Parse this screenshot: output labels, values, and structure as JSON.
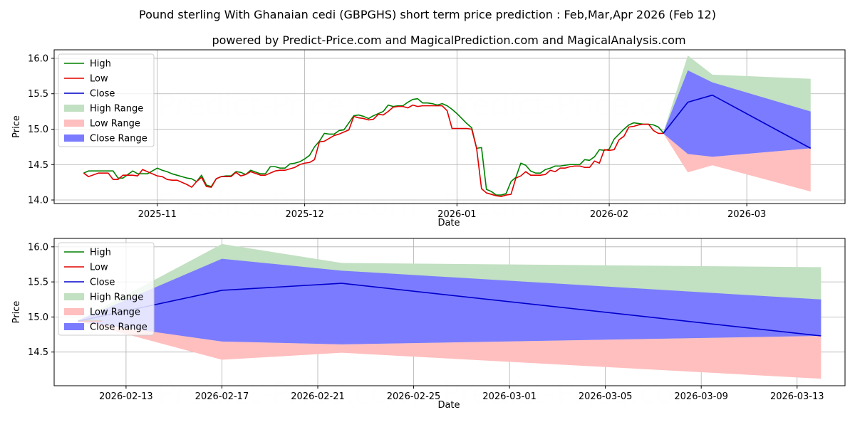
{
  "title": "Pound sterling With Ghanaian cedi (GBPGHS) short term price prediction : Feb,Mar,Apr 2026 (Feb 12)",
  "subtitle": "powered by Predict-Price.com and MagicalPrediction.com and MagicalAnalysis.com",
  "watermark": "Predict-Price.com",
  "colors": {
    "high": "#008000",
    "low": "#e00000",
    "close": "#0000cc",
    "high_range": "#c2e0c2",
    "low_range": "#ffbfbf",
    "close_range": "#7b7bff"
  },
  "chart_data": [
    {
      "type": "line",
      "name": "history",
      "xlabel": "Date",
      "ylabel": "Price",
      "xlim": [
        "2025-10-11",
        "2026-03-21"
      ],
      "ylim": [
        13.95,
        16.12
      ],
      "yticks": [
        14.0,
        14.5,
        15.0,
        15.5,
        16.0
      ],
      "ytick_labels": [
        "14.0",
        "14.5",
        "15.0",
        "15.5",
        "16.0"
      ],
      "xticks": [
        "2025-11-01",
        "2025-12-01",
        "2026-01-01",
        "2026-02-01",
        "2026-03-01"
      ],
      "xtick_labels": [
        "2025-11",
        "2025-12",
        "2026-01",
        "2026-02",
        "2026-03"
      ],
      "grid": true,
      "legend": {
        "placement": "top-left",
        "entries": [
          "High",
          "Low",
          "Close",
          "High Range",
          "Low Range",
          "Close Range"
        ]
      },
      "series": [
        {
          "name": "High",
          "x": [
            "2025-10-17",
            "2025-10-18",
            "2025-10-20",
            "2025-10-22",
            "2025-10-23",
            "2025-10-24",
            "2025-10-25",
            "2025-10-27",
            "2025-10-28",
            "2025-10-29",
            "2025-10-30",
            "2025-11-01",
            "2025-11-02",
            "2025-11-03",
            "2025-11-04",
            "2025-11-05",
            "2025-11-07",
            "2025-11-08",
            "2025-11-09",
            "2025-11-10",
            "2025-11-11",
            "2025-11-12",
            "2025-11-13",
            "2025-11-14",
            "2025-11-15",
            "2025-11-16",
            "2025-11-17",
            "2025-11-18",
            "2025-11-19",
            "2025-11-20",
            "2025-11-22",
            "2025-11-23",
            "2025-11-24",
            "2025-11-25",
            "2025-11-26",
            "2025-11-27",
            "2025-11-28",
            "2025-11-29",
            "2025-11-30",
            "2025-12-01",
            "2025-12-02",
            "2025-12-03",
            "2025-12-04",
            "2025-12-05",
            "2025-12-06",
            "2025-12-07",
            "2025-12-08",
            "2025-12-09",
            "2025-12-10",
            "2025-12-11",
            "2025-12-12",
            "2025-12-13",
            "2025-12-14",
            "2025-12-15",
            "2025-12-16",
            "2025-12-17",
            "2025-12-18",
            "2025-12-19",
            "2025-12-20",
            "2025-12-21",
            "2025-12-22",
            "2025-12-23",
            "2025-12-24",
            "2025-12-25",
            "2025-12-26",
            "2025-12-27",
            "2025-12-28",
            "2025-12-29",
            "2025-12-30",
            "2025-12-31",
            "2026-01-01",
            "2026-01-02",
            "2026-01-03",
            "2026-01-04",
            "2026-01-05",
            "2026-01-06",
            "2026-01-07",
            "2026-01-08",
            "2026-01-09",
            "2026-01-10",
            "2026-01-11",
            "2026-01-12",
            "2026-01-13",
            "2026-01-14",
            "2026-01-15",
            "2026-01-16",
            "2026-01-17",
            "2026-01-18",
            "2026-01-19",
            "2026-01-20",
            "2026-01-21",
            "2026-01-22",
            "2026-01-23",
            "2026-01-24",
            "2026-01-25",
            "2026-01-26",
            "2026-01-27",
            "2026-01-28",
            "2026-01-29",
            "2026-01-30",
            "2026-01-31",
            "2026-02-01",
            "2026-02-02",
            "2026-02-03",
            "2026-02-04",
            "2026-02-05",
            "2026-02-06",
            "2026-02-07",
            "2026-02-08",
            "2026-02-09",
            "2026-02-10",
            "2026-02-11",
            "2026-02-12"
          ],
          "values": [
            14.38,
            14.41,
            14.41,
            14.41,
            14.41,
            14.31,
            14.31,
            14.41,
            14.37,
            14.37,
            14.37,
            14.45,
            14.42,
            14.4,
            14.37,
            14.35,
            14.31,
            14.3,
            14.26,
            14.35,
            14.21,
            14.19,
            14.3,
            14.33,
            14.34,
            14.34,
            14.4,
            14.39,
            14.36,
            14.42,
            14.37,
            14.37,
            14.47,
            14.47,
            14.45,
            14.45,
            14.51,
            14.52,
            14.54,
            14.58,
            14.63,
            14.75,
            14.83,
            14.94,
            14.93,
            14.93,
            14.98,
            14.99,
            15.09,
            15.19,
            15.2,
            15.18,
            15.15,
            15.19,
            15.22,
            15.25,
            15.34,
            15.32,
            15.33,
            15.33,
            15.38,
            15.42,
            15.43,
            15.37,
            15.37,
            15.36,
            15.34,
            15.36,
            15.33,
            15.28,
            15.22,
            15.15,
            15.08,
            15.02,
            14.73,
            14.74,
            14.15,
            14.12,
            14.07,
            14.07,
            14.09,
            14.26,
            14.32,
            14.52,
            14.49,
            14.41,
            14.38,
            14.38,
            14.43,
            14.45,
            14.48,
            14.48,
            14.49,
            14.5,
            14.5,
            14.5,
            14.57,
            14.56,
            14.61,
            14.71,
            14.7,
            14.72,
            14.86,
            14.93,
            15.0,
            15.06,
            15.09,
            15.08,
            15.07,
            15.07,
            15.06,
            15.03,
            14.95
          ]
        },
        {
          "name": "Low",
          "x": [
            "2025-10-17",
            "2025-10-18",
            "2025-10-20",
            "2025-10-22",
            "2025-10-23",
            "2025-10-24",
            "2025-10-25",
            "2025-10-27",
            "2025-10-28",
            "2025-10-29",
            "2025-10-30",
            "2025-11-01",
            "2025-11-02",
            "2025-11-03",
            "2025-11-04",
            "2025-11-05",
            "2025-11-07",
            "2025-11-08",
            "2025-11-09",
            "2025-11-10",
            "2025-11-11",
            "2025-11-12",
            "2025-11-13",
            "2025-11-14",
            "2025-11-15",
            "2025-11-16",
            "2025-11-17",
            "2025-11-18",
            "2025-11-19",
            "2025-11-20",
            "2025-11-22",
            "2025-11-23",
            "2025-11-24",
            "2025-11-25",
            "2025-11-26",
            "2025-11-27",
            "2025-11-28",
            "2025-11-29",
            "2025-11-30",
            "2025-12-01",
            "2025-12-02",
            "2025-12-03",
            "2025-12-04",
            "2025-12-05",
            "2025-12-06",
            "2025-12-07",
            "2025-12-08",
            "2025-12-09",
            "2025-12-10",
            "2025-12-11",
            "2025-12-12",
            "2025-12-13",
            "2025-12-14",
            "2025-12-15",
            "2025-12-16",
            "2025-12-17",
            "2025-12-18",
            "2025-12-19",
            "2025-12-20",
            "2025-12-21",
            "2025-12-22",
            "2025-12-23",
            "2025-12-24",
            "2025-12-25",
            "2025-12-26",
            "2025-12-27",
            "2025-12-28",
            "2025-12-29",
            "2025-12-30",
            "2025-12-31",
            "2026-01-01",
            "2026-01-02",
            "2026-01-03",
            "2026-01-04",
            "2026-01-05",
            "2026-01-06",
            "2026-01-07",
            "2026-01-08",
            "2026-01-09",
            "2026-01-10",
            "2026-01-11",
            "2026-01-12",
            "2026-01-13",
            "2026-01-14",
            "2026-01-15",
            "2026-01-16",
            "2026-01-17",
            "2026-01-18",
            "2026-01-19",
            "2026-01-20",
            "2026-01-21",
            "2026-01-22",
            "2026-01-23",
            "2026-01-24",
            "2026-01-25",
            "2026-01-26",
            "2026-01-27",
            "2026-01-28",
            "2026-01-29",
            "2026-01-30",
            "2026-01-31",
            "2026-02-01",
            "2026-02-02",
            "2026-02-03",
            "2026-02-04",
            "2026-02-05",
            "2026-02-06",
            "2026-02-07",
            "2026-02-08",
            "2026-02-09",
            "2026-02-10",
            "2026-02-11",
            "2026-02-12"
          ],
          "values": [
            14.38,
            14.33,
            14.38,
            14.38,
            14.29,
            14.29,
            14.35,
            14.35,
            14.34,
            14.43,
            14.4,
            14.34,
            14.33,
            14.29,
            14.28,
            14.28,
            14.22,
            14.18,
            14.26,
            14.32,
            14.19,
            14.18,
            14.3,
            14.33,
            14.33,
            14.33,
            14.39,
            14.34,
            14.36,
            14.4,
            14.35,
            14.35,
            14.38,
            14.41,
            14.42,
            14.42,
            14.44,
            14.46,
            14.5,
            14.52,
            14.53,
            14.57,
            14.82,
            14.83,
            14.87,
            14.91,
            14.93,
            14.96,
            14.99,
            15.18,
            15.16,
            15.15,
            15.13,
            15.14,
            15.21,
            15.2,
            15.25,
            15.31,
            15.32,
            15.32,
            15.3,
            15.34,
            15.32,
            15.33,
            15.33,
            15.33,
            15.33,
            15.33,
            15.26,
            15.01,
            15.01,
            15.01,
            15.01,
            15.0,
            14.73,
            14.16,
            14.1,
            14.08,
            14.06,
            14.05,
            14.07,
            14.08,
            14.31,
            14.34,
            14.4,
            14.35,
            14.35,
            14.35,
            14.36,
            14.42,
            14.4,
            14.45,
            14.45,
            14.47,
            14.48,
            14.48,
            14.46,
            14.46,
            14.55,
            14.52,
            14.71,
            14.7,
            14.71,
            14.85,
            14.9,
            15.03,
            15.04,
            15.06,
            15.07,
            15.07,
            14.98,
            14.94,
            14.94
          ]
        },
        {
          "name": "Close",
          "x": [
            "2026-02-12",
            "2026-02-17",
            "2026-02-22",
            "2026-03-14"
          ],
          "values": [
            14.94,
            15.38,
            15.48,
            14.73
          ]
        }
      ],
      "bands": [
        {
          "name": "High Range",
          "x": [
            "2026-02-12",
            "2026-02-17",
            "2026-02-22",
            "2026-03-14"
          ],
          "upper": [
            14.95,
            16.04,
            15.77,
            15.71
          ],
          "lower": [
            14.94,
            14.65,
            14.61,
            14.73
          ]
        },
        {
          "name": "Low Range",
          "x": [
            "2026-02-12",
            "2026-02-17",
            "2026-02-22",
            "2026-03-14"
          ],
          "upper": [
            14.95,
            14.65,
            14.61,
            14.73
          ],
          "lower": [
            14.94,
            14.39,
            14.49,
            14.12
          ]
        },
        {
          "name": "Close Range",
          "x": [
            "2026-02-12",
            "2026-02-17",
            "2026-02-22",
            "2026-03-14"
          ],
          "upper": [
            14.95,
            15.83,
            15.66,
            15.25
          ],
          "lower": [
            14.94,
            14.65,
            14.61,
            14.73
          ]
        }
      ]
    },
    {
      "type": "line",
      "name": "forecast",
      "xlabel": "Date",
      "ylabel": "Price",
      "xlim": [
        "2026-02-10",
        "2026-03-15"
      ],
      "ylim": [
        14.02,
        16.12
      ],
      "yticks": [
        14.5,
        15.0,
        15.5,
        16.0
      ],
      "ytick_labels": [
        "14.5",
        "15.0",
        "15.5",
        "16.0"
      ],
      "xticks": [
        "2026-02-13",
        "2026-02-17",
        "2026-02-21",
        "2026-02-25",
        "2026-03-01",
        "2026-03-05",
        "2026-03-09",
        "2026-03-13"
      ],
      "xtick_labels": [
        "2026-02-13",
        "2026-02-17",
        "2026-02-21",
        "2026-02-25",
        "2026-03-01",
        "2026-03-05",
        "2026-03-09",
        "2026-03-13"
      ],
      "grid": true,
      "legend": {
        "placement": "top-left",
        "entries": [
          "High",
          "Low",
          "Close",
          "High Range",
          "Low Range",
          "Close Range"
        ]
      },
      "series": [
        {
          "name": "High",
          "x": [
            "2026-02-11",
            "2026-02-12"
          ],
          "values": [
            14.95,
            14.95
          ]
        },
        {
          "name": "Low",
          "x": [
            "2026-02-11",
            "2026-02-12"
          ],
          "values": [
            14.94,
            14.94
          ]
        },
        {
          "name": "Close",
          "x": [
            "2026-02-11",
            "2026-02-17",
            "2026-02-22",
            "2026-03-14"
          ],
          "values": [
            14.94,
            15.38,
            15.48,
            14.73
          ]
        }
      ],
      "bands": [
        {
          "name": "High Range",
          "x": [
            "2026-02-11",
            "2026-02-17",
            "2026-02-22",
            "2026-03-14"
          ],
          "upper": [
            14.95,
            16.04,
            15.77,
            15.71
          ],
          "lower": [
            14.94,
            14.65,
            14.61,
            14.73
          ]
        },
        {
          "name": "Low Range",
          "x": [
            "2026-02-11",
            "2026-02-17",
            "2026-02-22",
            "2026-03-14"
          ],
          "upper": [
            14.95,
            14.65,
            14.61,
            14.73
          ],
          "lower": [
            14.94,
            14.39,
            14.49,
            14.12
          ]
        },
        {
          "name": "Close Range",
          "x": [
            "2026-02-11",
            "2026-02-17",
            "2026-02-22",
            "2026-03-14"
          ],
          "upper": [
            14.95,
            15.83,
            15.66,
            15.25
          ],
          "lower": [
            14.94,
            14.65,
            14.61,
            14.73
          ]
        }
      ]
    }
  ]
}
